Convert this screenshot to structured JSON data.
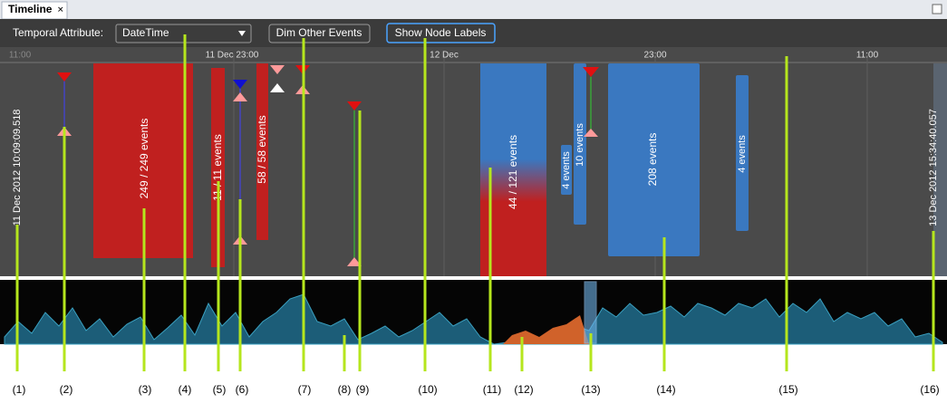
{
  "tab": {
    "title": "Timeline"
  },
  "toolbar": {
    "attribute_label": "Temporal Attribute:",
    "attribute_value": "DateTime",
    "dim_button": "Dim Other Events",
    "labels_button": "Show Node Labels"
  },
  "axis": {
    "ticks": [
      "11:00",
      "11 Dec 23:00",
      "12 Dec",
      "23:00",
      "11:00"
    ]
  },
  "range": {
    "start": "11 Dec 2012 10:09:09.518",
    "end": "13 Dec 2012 15:34:40.057"
  },
  "blocks": [
    "249 / 249 events",
    "11 / 11 events",
    "58 / 58 events",
    "44 / 121 events",
    "4 events",
    "10 events",
    "208 events",
    "4 events"
  ],
  "callouts": [
    "(1)",
    "(2)",
    "(3)",
    "(4)",
    "(5)",
    "(6)",
    "(7)",
    "(8)",
    "(9)",
    "(10)",
    "(11)",
    "(12)",
    "(13)",
    "(14)",
    "(15)",
    "(16)"
  ]
}
